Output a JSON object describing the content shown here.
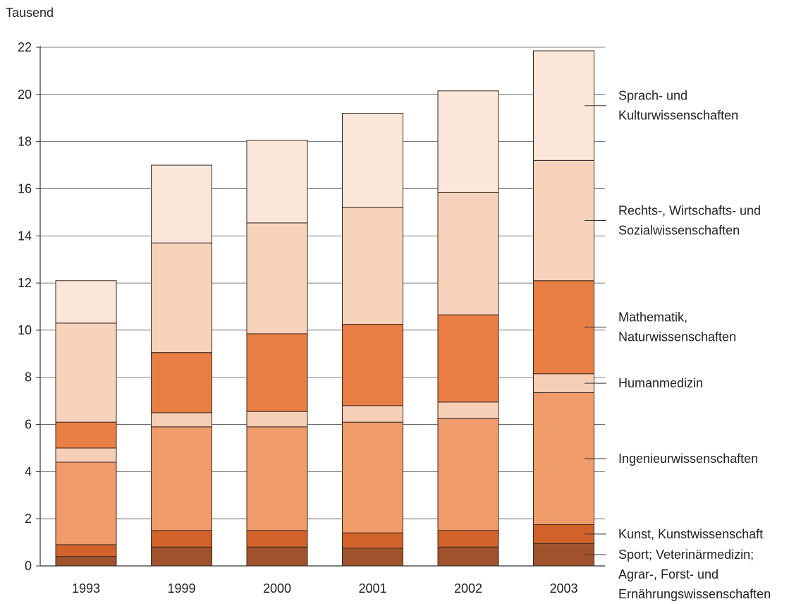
{
  "chart_data": {
    "type": "bar",
    "stacked": true,
    "ylabel": "Tausend",
    "ylim": [
      0,
      22
    ],
    "yticks": [
      0,
      2,
      4,
      6,
      8,
      10,
      12,
      14,
      16,
      18,
      20,
      22
    ],
    "grid": true,
    "legend_position": "right",
    "categories": [
      "1993",
      "1999",
      "2000",
      "2001",
      "2002",
      "2003"
    ],
    "series": [
      {
        "name": "Sport; Veterinärmedizin; Agrar-, Forst- und Ernährungswissenschaften",
        "color": "#a0522d",
        "values": [
          0.4,
          0.8,
          0.8,
          0.75,
          0.8,
          0.95
        ]
      },
      {
        "name": "Kunst, Kunstwissenschaft",
        "color": "#d2622a",
        "values": [
          0.5,
          0.7,
          0.7,
          0.65,
          0.7,
          0.8
        ]
      },
      {
        "name": "Ingenieurwissenschaften",
        "color": "#f09b6a",
        "values": [
          3.5,
          4.4,
          4.4,
          4.7,
          4.75,
          5.6
        ]
      },
      {
        "name": "Humanmedizin",
        "color": "#f7cfb7",
        "values": [
          0.6,
          0.6,
          0.65,
          0.7,
          0.7,
          0.8
        ]
      },
      {
        "name": "Mathematik, Naturwissenschaften",
        "color": "#e97f44",
        "values": [
          1.1,
          2.55,
          3.3,
          3.45,
          3.7,
          3.95
        ]
      },
      {
        "name": "Rechts-, Wirtschafts- und Sozialwissenschaften",
        "color": "#f7d3bc",
        "values": [
          4.2,
          4.65,
          4.7,
          4.95,
          5.2,
          5.1
        ]
      },
      {
        "name": "Sprach- und Kulturwissenschaften",
        "color": "#fae7da",
        "values": [
          1.8,
          3.3,
          3.5,
          4.0,
          4.3,
          4.65
        ]
      }
    ],
    "legend": [
      {
        "lines": [
          "Sport; Veterinärmedizin;",
          "Agrar-, Forst- und",
          "Ernährungswissenschaften"
        ]
      },
      {
        "lines": [
          "Kunst, Kunstwissenschaft"
        ]
      },
      {
        "lines": [
          "Ingenieurwissenschaften"
        ]
      },
      {
        "lines": [
          "Humanmedizin"
        ]
      },
      {
        "lines": [
          "Mathematik,",
          "Naturwissenschaften"
        ]
      },
      {
        "lines": [
          "Rechts-, Wirtschafts- und",
          "Sozialwissenschaften"
        ]
      },
      {
        "lines": [
          "Sprach- und",
          "Kulturwissenschaften"
        ]
      }
    ]
  }
}
